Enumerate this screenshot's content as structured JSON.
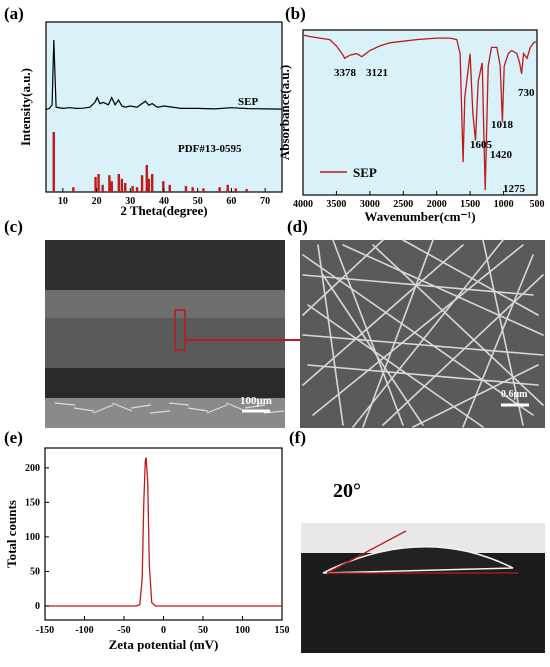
{
  "colors": {
    "plot_bg": "#d9f1f8",
    "curve": "#c0191b",
    "black": "#000000",
    "sem_bg": "#5a5a5a"
  },
  "panels": {
    "a": {
      "label": "(a)",
      "ylabel": "Intensity(a.u.)",
      "xlabel": "2 Theta(degree)",
      "xticks": [
        "10",
        "20",
        "30",
        "40",
        "50",
        "60",
        "70"
      ],
      "xlim": [
        5,
        75
      ],
      "sep_label": "SEP",
      "pdf_label": "PDF#13-0595"
    },
    "b": {
      "label": "(b)",
      "ylabel": "Absorbance(a.u.)",
      "xlabel": "Wavenumber(cm⁻¹)",
      "xticks": [
        "4000",
        "3500",
        "3000",
        "2500",
        "2000",
        "1500",
        "1000",
        "500"
      ],
      "xlim": [
        4000,
        500
      ],
      "legend": "SEP",
      "peaks": [
        "3378",
        "3121",
        "1605",
        "1420",
        "1275",
        "1018",
        "730"
      ]
    },
    "c": {
      "label": "(c)",
      "scale": "100μm"
    },
    "d": {
      "label": "(d)",
      "scale": "0.6μm"
    },
    "e": {
      "label": "(e)",
      "ylabel": "Total counts",
      "xlabel": "Zeta potential (mV)",
      "xticks": [
        "-150",
        "-100",
        "-50",
        "0",
        "50",
        "100",
        "150"
      ],
      "yticks": [
        "0",
        "50",
        "100",
        "150",
        "200"
      ],
      "xlim": [
        -150,
        150
      ],
      "ylim": [
        0,
        220
      ]
    },
    "f": {
      "label": "(f)",
      "angle": "20°"
    }
  },
  "chart_data": [
    {
      "type": "line",
      "panel": "a",
      "xlabel": "2 Theta(degree)",
      "ylabel": "Intensity(a.u.)",
      "xlim": [
        5,
        75
      ],
      "series": [
        {
          "name": "SEP",
          "x": [
            5,
            6,
            6.8,
            7.3,
            8,
            10,
            12,
            14,
            16,
            18,
            19.5,
            20.2,
            21,
            22,
            23.5,
            24.5,
            25.5,
            26.5,
            27.5,
            28.5,
            30,
            32,
            33,
            34.5,
            35.5,
            36.5,
            38,
            40,
            45,
            50,
            55,
            60,
            65,
            70,
            75
          ],
          "y": [
            1,
            1.5,
            3,
            30,
            2,
            1.5,
            1.8,
            1.5,
            1.6,
            2,
            4,
            6,
            3.5,
            4,
            3,
            6,
            3,
            5,
            2.5,
            2,
            2.5,
            2,
            3,
            4.5,
            2.8,
            3.5,
            2,
            2.5,
            1.5,
            1.5,
            1.3,
            1.8,
            1.4,
            1.3,
            1.2
          ]
        }
      ]
    },
    {
      "type": "bar",
      "panel": "a",
      "name": "PDF#13-0595",
      "x": [
        7.3,
        13.1,
        19.7,
        20.6,
        21.8,
        23.8,
        24.5,
        26.6,
        27.5,
        28.5,
        30.7,
        32.0,
        33.5,
        34.9,
        35.5,
        36.5,
        39.8,
        41.7,
        46.5,
        48.5,
        51.7,
        56.5,
        58.9,
        61.3,
        64.5
      ],
      "values": [
        100,
        8,
        25,
        30,
        12,
        28,
        18,
        30,
        22,
        15,
        10,
        8,
        28,
        45,
        22,
        30,
        18,
        12,
        10,
        8,
        6,
        8,
        12,
        6,
        5
      ]
    },
    {
      "type": "line",
      "panel": "b",
      "xlabel": "Wavenumber(cm⁻¹)",
      "ylabel": "Absorbance(a.u.)",
      "xlim": [
        4000,
        500
      ],
      "series": [
        {
          "name": "SEP",
          "x": [
            4000,
            3900,
            3750,
            3600,
            3500,
            3400,
            3378,
            3300,
            3200,
            3121,
            3000,
            2850,
            2700,
            2500,
            2300,
            2000,
            1800,
            1700,
            1650,
            1605,
            1580,
            1500,
            1460,
            1420,
            1380,
            1320,
            1275,
            1230,
            1180,
            1100,
            1050,
            1018,
            990,
            930,
            880,
            800,
            760,
            730,
            700,
            650,
            600,
            550,
            500
          ],
          "y": [
            0,
            -1,
            -2,
            -3,
            -7,
            -13,
            -15,
            -13,
            -12,
            -14,
            -10,
            -7,
            -5,
            -4,
            -3,
            -2,
            -2,
            -3,
            -12,
            -82,
            -40,
            -12,
            -50,
            -68,
            -30,
            -18,
            -100,
            -20,
            -8,
            -8,
            -20,
            -56,
            -20,
            -12,
            -10,
            -12,
            -18,
            -25,
            -12,
            -15,
            -8,
            -5,
            -4
          ]
        }
      ]
    },
    {
      "type": "line",
      "panel": "e",
      "xlabel": "Zeta potential (mV)",
      "ylabel": "Total counts",
      "xlim": [
        -150,
        150
      ],
      "ylim": [
        0,
        220
      ],
      "series": [
        {
          "name": "Total counts",
          "x": [
            -150,
            -35,
            -30,
            -27,
            -25,
            -23,
            -22,
            -20,
            -18,
            -15,
            -10,
            150
          ],
          "y": [
            0,
            0,
            2,
            40,
            150,
            210,
            215,
            180,
            60,
            5,
            0,
            0
          ]
        }
      ]
    }
  ]
}
